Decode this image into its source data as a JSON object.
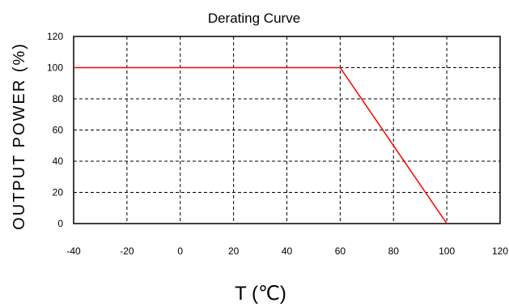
{
  "chart_data": {
    "type": "line",
    "title": "Derating Curve",
    "xlabel": "T (℃)",
    "ylabel": "OUTPUT POWER (%)",
    "xlim": [
      -40,
      120
    ],
    "ylim": [
      0,
      120
    ],
    "x_ticks": [
      -40,
      -20,
      0,
      20,
      40,
      60,
      80,
      100,
      120
    ],
    "y_ticks": [
      0,
      20,
      40,
      60,
      80,
      100,
      120
    ],
    "grid": true,
    "grid_style": "dashed",
    "series": [
      {
        "color": "#ff0000",
        "x": [
          -40,
          60,
          100
        ],
        "y": [
          100,
          100,
          0
        ]
      }
    ]
  }
}
